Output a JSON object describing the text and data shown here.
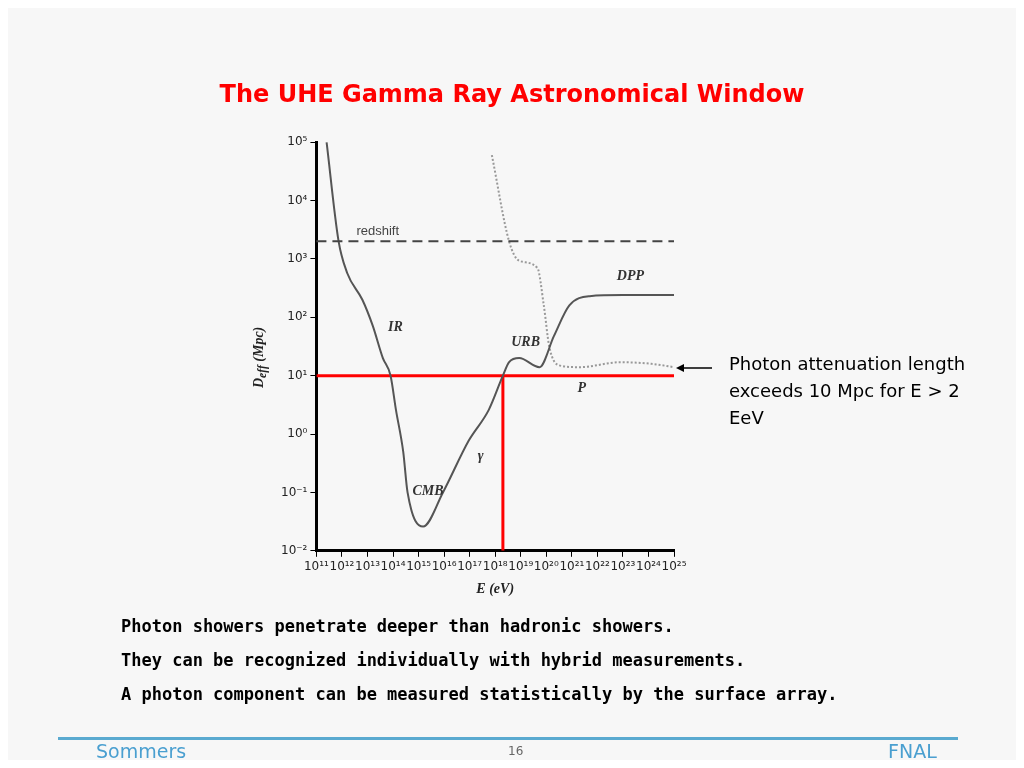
{
  "chart_data": {
    "type": "line",
    "title": "The UHE Gamma Ray Astronomical Window",
    "xlabel": "E (eV)",
    "ylabel": "D$_{eff}$ (Mpc)",
    "log": "xy",
    "grid": false,
    "legend": false,
    "marker": "none",
    "xlim": [
      100000000000.0,
      1e+25
    ],
    "ylim": [
      0.01,
      100000
    ],
    "xticks": [
      {
        "value": 100000000000.0,
        "label": "10¹¹"
      },
      {
        "value": 1000000000000.0,
        "label": "10¹²"
      },
      {
        "value": 10000000000000.0,
        "label": "10¹³"
      },
      {
        "value": 100000000000000.0,
        "label": "10¹⁴"
      },
      {
        "value": 1000000000000000.0,
        "label": "10¹⁵"
      },
      {
        "value": 1e+16,
        "label": "10¹⁶"
      },
      {
        "value": 1e+17,
        "label": "10¹⁷"
      },
      {
        "value": 1e+18,
        "label": "10¹⁸"
      },
      {
        "value": 1e+19,
        "label": "10¹⁹"
      },
      {
        "value": 1e+20,
        "label": "10²⁰"
      },
      {
        "value": 1e+21,
        "label": "10²¹"
      },
      {
        "value": 1e+22,
        "label": "10²²"
      },
      {
        "value": 1e+23,
        "label": "10²³"
      },
      {
        "value": 1e+24,
        "label": "10²⁴"
      },
      {
        "value": 1e+25,
        "label": "10²⁵"
      }
    ],
    "yticks": [
      {
        "value": 0.01,
        "label": "10⁻²"
      },
      {
        "value": 0.1,
        "label": "10⁻¹"
      },
      {
        "value": 1,
        "label": "10⁰"
      },
      {
        "value": 10,
        "label": "10¹"
      },
      {
        "value": 100,
        "label": "10²"
      },
      {
        "value": 1000,
        "label": "10³"
      },
      {
        "value": 10000,
        "label": "10⁴"
      },
      {
        "value": 100000,
        "label": "10⁵"
      }
    ],
    "series": [
      {
        "type": "line",
        "color": "#555555",
        "line_style": "solid",
        "x": [
          250000000000.0,
          740000000000.0,
          1600000000000.0,
          6300000000000.0,
          16000000000000.0,
          40000000000000.0,
          80000000000000.0,
          130000000000000.0,
          250000000000000.0,
          370000000000000.0,
          1500000000000000.0,
          9000000000000000.0,
          9e+16,
          5.6e+17,
          2e+18,
          3.5e+18,
          8.7e+18,
          5.4e+19,
          2e+20,
          8e+20,
          5e+21,
          1e+23,
          1e+25
        ],
        "values": [
          100000,
          2000,
          575,
          200,
          72,
          20,
          10,
          2.6,
          0.5,
          0.1,
          0.026,
          0.1,
          0.76,
          2.6,
          10,
          17,
          20,
          14,
          48,
          160,
          230,
          240,
          240
        ]
      },
      {
        "type": "line",
        "color": "#999999",
        "line_style": "dotted",
        "x": [
          7.4e+17,
          3.5e+18,
          8.7e+18,
          4.5e+19,
          8e+19,
          1.3e+20,
          3.2e+20,
          2e+21,
          8e+22,
          1.3e+24,
          1e+25
        ],
        "values": [
          60000,
          2000,
          930,
          700,
          160,
          32,
          15,
          14,
          17,
          16,
          14
        ]
      },
      {
        "type": "line",
        "color": "#ff0000",
        "line_style": "solid",
        "x": [
          100000000000.0,
          1e+25
        ],
        "values": [
          10,
          10
        ]
      },
      {
        "type": "line",
        "color": "#ff0000",
        "line_style": "solid",
        "x": [
          2e+18,
          2e+18
        ],
        "values": [
          0.01,
          10
        ]
      }
    ],
    "ref_lines": [
      {
        "axis": "y",
        "value": 2000,
        "label": "redshift",
        "color": "#444444",
        "line_style": "dashed"
      }
    ],
    "annotations": [
      "Photon attenuation length exceeds 10 Mpc for E > 2 EeV",
      "Photon showers penetrate deeper than hadronic showers.",
      "They can be recognized individually with hybrid measurements.",
      "A photon component can be measured statistically by the surface array.",
      "Sommers",
      "16",
      "FNAL",
      "IR",
      "CMB",
      "γ",
      "URB",
      "DPP",
      "P"
    ]
  }
}
